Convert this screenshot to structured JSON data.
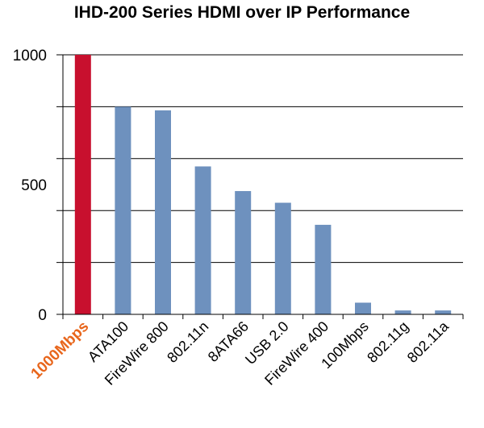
{
  "chart_data": {
    "type": "bar",
    "title": "IHD-200 Series HDMI over IP Performance",
    "xlabel": "",
    "ylabel": "",
    "categories": [
      "1000Mbps",
      "ATA100",
      "FireWire 800",
      "802.11n",
      "8ATA66",
      "USB 2.0",
      "FireWire 400",
      "100Mbps",
      "802.11g",
      "802.11a"
    ],
    "values": [
      1000,
      800,
      786,
      570,
      475,
      430,
      345,
      45,
      15,
      15
    ],
    "ylim": [
      0,
      1000
    ],
    "yticks": [
      0,
      500,
      1000
    ],
    "grid": true,
    "legend": "none",
    "highlight_index": 0,
    "colors": {
      "highlight_bar": "#c8102e",
      "bar": "#6e91be",
      "highlight_label": "#e8661c",
      "grid": "#000000"
    }
  }
}
